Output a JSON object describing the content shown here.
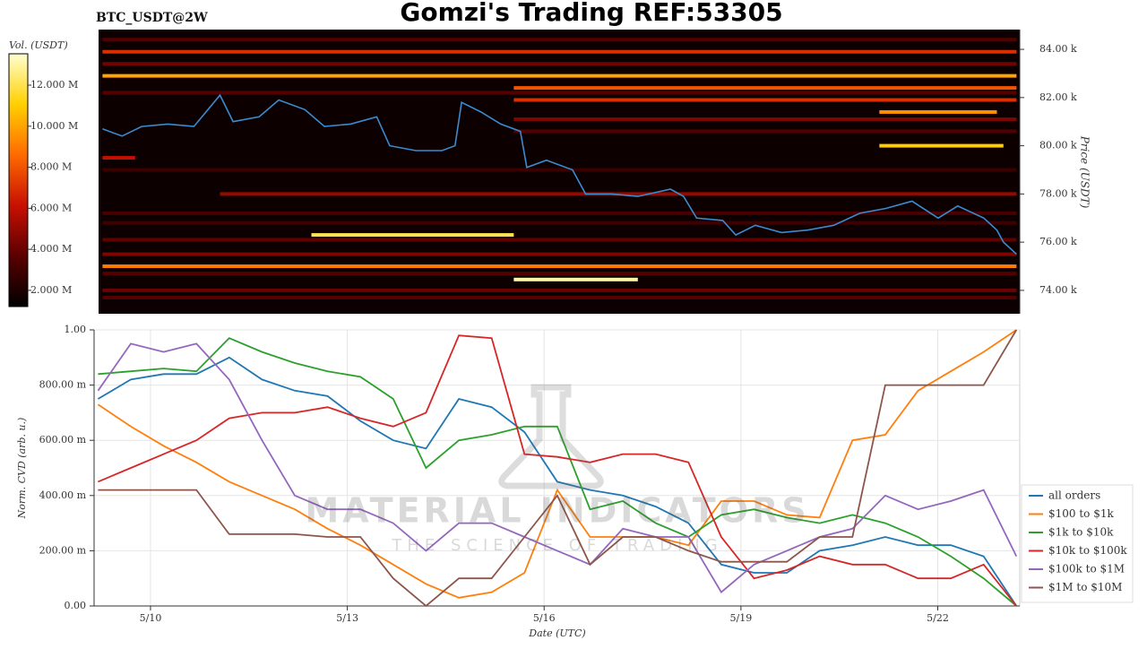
{
  "title": "Gomzi's Trading REF:53305",
  "watermark": {
    "title": "MATERIAL INDICATORS",
    "subtitle": "THE SCIENCE OF TRADING"
  },
  "chart_data": [
    {
      "type": "heatmap",
      "label": "BTC_USDT@2W",
      "y_label": "Price (USDT)",
      "colorbar_label": "Vol. (USDT)",
      "xlim": [
        9.14,
        23.25
      ],
      "ylim": [
        73030,
        84820
      ],
      "yticks": [
        {
          "value": 74000,
          "label": "74.00 k"
        },
        {
          "value": 76000,
          "label": "76.00 k"
        },
        {
          "value": 78000,
          "label": "78.00 k"
        },
        {
          "value": 80000,
          "label": "80.00 k"
        },
        {
          "value": 82000,
          "label": "82.00 k"
        },
        {
          "value": 84000,
          "label": "84.00 k"
        }
      ],
      "clim": [
        1210000,
        13530000
      ],
      "cticks": [
        {
          "value": 2000000,
          "label": "2.000 M"
        },
        {
          "value": 4000000,
          "label": "4.000 M"
        },
        {
          "value": 6000000,
          "label": "6.000 M"
        },
        {
          "value": 8000000,
          "label": "8.000 M"
        },
        {
          "value": 10000000,
          "label": "10.000 M"
        },
        {
          "value": 12000000,
          "label": "12.000 M"
        }
      ],
      "colormap": [
        "#000000",
        "#5a0000",
        "#c81000",
        "#ff6a00",
        "#ffd000",
        "#ffffd0"
      ],
      "levels": [
        {
          "price": 75000,
          "start": 9.2,
          "end": 23.2,
          "volume": 9000000
        },
        {
          "price": 76300,
          "start": 12.4,
          "end": 15.5,
          "volume": 12000000
        },
        {
          "price": 74450,
          "start": 15.5,
          "end": 17.4,
          "volume": 13000000
        },
        {
          "price": 82900,
          "start": 9.2,
          "end": 23.2,
          "volume": 10000000
        },
        {
          "price": 83900,
          "start": 9.2,
          "end": 23.2,
          "volume": 7000000
        },
        {
          "price": 80000,
          "start": 21.1,
          "end": 23.0,
          "volume": 11000000
        },
        {
          "price": 81400,
          "start": 21.1,
          "end": 22.9,
          "volume": 9500000
        },
        {
          "price": 82400,
          "start": 15.5,
          "end": 23.2,
          "volume": 8000000
        },
        {
          "price": 81900,
          "start": 15.5,
          "end": 23.2,
          "volume": 7000000
        },
        {
          "price": 79500,
          "start": 9.2,
          "end": 9.7,
          "volume": 6000000
        },
        {
          "price": 78000,
          "start": 11.0,
          "end": 23.2,
          "volume": 5000000
        },
        {
          "price": 74000,
          "start": 9.2,
          "end": 23.2,
          "volume": 4000000
        },
        {
          "price": 73700,
          "start": 9.2,
          "end": 23.2,
          "volume": 3500000
        },
        {
          "price": 75500,
          "start": 9.2,
          "end": 23.2,
          "volume": 4500000
        },
        {
          "price": 74700,
          "start": 9.2,
          "end": 23.2,
          "volume": 3500000
        },
        {
          "price": 76100,
          "start": 9.2,
          "end": 23.2,
          "volume": 3800000
        },
        {
          "price": 83400,
          "start": 9.2,
          "end": 23.2,
          "volume": 4200000
        },
        {
          "price": 82200,
          "start": 9.2,
          "end": 23.2,
          "volume": 3500000
        },
        {
          "price": 81100,
          "start": 15.5,
          "end": 23.2,
          "volume": 4500000
        },
        {
          "price": 80600,
          "start": 15.5,
          "end": 23.2,
          "volume": 3500000
        },
        {
          "price": 77200,
          "start": 9.2,
          "end": 23.2,
          "volume": 3200000
        },
        {
          "price": 76800,
          "start": 9.2,
          "end": 23.2,
          "volume": 3000000
        },
        {
          "price": 79000,
          "start": 9.2,
          "end": 23.2,
          "volume": 2800000
        },
        {
          "price": 84400,
          "start": 9.2,
          "end": 23.2,
          "volume": 3500000
        }
      ],
      "line_color": "#3b8bd0",
      "x": [
        9.2,
        9.5,
        9.8,
        10.2,
        10.6,
        11.0,
        11.2,
        11.6,
        11.9,
        12.3,
        12.6,
        13.0,
        13.4,
        13.6,
        14.0,
        14.4,
        14.6,
        14.7,
        15.0,
        15.3,
        15.6,
        15.7,
        16.0,
        16.4,
        16.6,
        17.0,
        17.4,
        17.9,
        18.1,
        18.3,
        18.7,
        18.9,
        19.2,
        19.6,
        20.0,
        20.4,
        20.8,
        21.2,
        21.6,
        22.0,
        22.3,
        22.7,
        22.9,
        23.0,
        23.2
      ],
      "values": [
        80700,
        80400,
        80800,
        80900,
        80800,
        82100,
        81000,
        81200,
        81900,
        81500,
        80800,
        80900,
        81200,
        80000,
        79800,
        79800,
        80000,
        81800,
        81400,
        80900,
        80600,
        79100,
        79400,
        79000,
        78000,
        78000,
        77900,
        78200,
        77900,
        77000,
        76900,
        76300,
        76700,
        76400,
        76500,
        76700,
        77200,
        77400,
        77700,
        77000,
        77500,
        77000,
        76500,
        76000,
        75500
      ]
    },
    {
      "type": "line",
      "y_label": "Norm. CVD (arb. u.)",
      "x_label": "Date (UTC)",
      "xlim": [
        9.14,
        23.25
      ],
      "ylim": [
        0,
        1
      ],
      "xticks": [
        {
          "value": 10,
          "label": "5/10"
        },
        {
          "value": 13,
          "label": "5/13"
        },
        {
          "value": 16,
          "label": "5/16"
        },
        {
          "value": 19,
          "label": "5/19"
        },
        {
          "value": 22,
          "label": "5/22"
        }
      ],
      "yticks": [
        {
          "value": 0,
          "label": "0.00"
        },
        {
          "value": 0.2,
          "label": "200.00 m"
        },
        {
          "value": 0.4,
          "label": "400.00 m"
        },
        {
          "value": 0.6,
          "label": "600.00 m"
        },
        {
          "value": 0.8,
          "label": "800.00 m"
        },
        {
          "value": 1,
          "label": "1.00"
        }
      ],
      "grid": true,
      "legend": "lower right",
      "x": [
        9.2,
        9.7,
        10.2,
        10.7,
        11.2,
        11.7,
        12.2,
        12.7,
        13.2,
        13.7,
        14.2,
        14.7,
        15.2,
        15.7,
        16.2,
        16.7,
        17.2,
        17.7,
        18.2,
        18.7,
        19.2,
        19.7,
        20.2,
        20.7,
        21.2,
        21.7,
        22.2,
        22.7,
        23.2
      ],
      "series": [
        {
          "name": "all orders",
          "color": "#1f77b4",
          "values": [
            0.75,
            0.82,
            0.84,
            0.84,
            0.9,
            0.82,
            0.78,
            0.76,
            0.67,
            0.6,
            0.57,
            0.75,
            0.72,
            0.63,
            0.45,
            0.42,
            0.4,
            0.36,
            0.3,
            0.15,
            0.12,
            0.12,
            0.2,
            0.22,
            0.25,
            0.22,
            0.22,
            0.18,
            0
          ]
        },
        {
          "name": "$100 to $1k",
          "color": "#ff7f0e",
          "values": [
            0.73,
            0.65,
            0.58,
            0.52,
            0.45,
            0.4,
            0.35,
            0.28,
            0.22,
            0.15,
            0.08,
            0.03,
            0.05,
            0.12,
            0.42,
            0.25,
            0.25,
            0.25,
            0.22,
            0.38,
            0.38,
            0.33,
            0.32,
            0.6,
            0.62,
            0.78,
            0.85,
            0.92,
            1
          ]
        },
        {
          "name": "$1k to $10k",
          "color": "#2ca02c",
          "values": [
            0.84,
            0.85,
            0.86,
            0.85,
            0.97,
            0.92,
            0.88,
            0.85,
            0.83,
            0.75,
            0.5,
            0.6,
            0.62,
            0.65,
            0.65,
            0.35,
            0.38,
            0.3,
            0.25,
            0.33,
            0.35,
            0.32,
            0.3,
            0.33,
            0.3,
            0.25,
            0.18,
            0.1,
            0
          ]
        },
        {
          "name": "$10k to $100k",
          "color": "#d62728",
          "values": [
            0.45,
            0.5,
            0.55,
            0.6,
            0.68,
            0.7,
            0.7,
            0.72,
            0.68,
            0.65,
            0.7,
            0.98,
            0.97,
            0.55,
            0.54,
            0.52,
            0.55,
            0.55,
            0.52,
            0.25,
            0.1,
            0.13,
            0.18,
            0.15,
            0.15,
            0.1,
            0.1,
            0.15,
            0
          ]
        },
        {
          "name": "$100k to $1M",
          "color": "#9467bd",
          "values": [
            0.78,
            0.95,
            0.92,
            0.95,
            0.82,
            0.6,
            0.4,
            0.35,
            0.35,
            0.3,
            0.2,
            0.3,
            0.3,
            0.25,
            0.2,
            0.15,
            0.28,
            0.25,
            0.25,
            0.05,
            0.15,
            0.2,
            0.25,
            0.28,
            0.4,
            0.35,
            0.38,
            0.42,
            0.18
          ]
        },
        {
          "name": "$1M to $10M",
          "color": "#8c564b",
          "values": [
            0.42,
            0.42,
            0.42,
            0.42,
            0.26,
            0.26,
            0.26,
            0.25,
            0.25,
            0.1,
            0,
            0.1,
            0.1,
            0.25,
            0.4,
            0.15,
            0.25,
            0.25,
            0.2,
            0.16,
            0.16,
            0.16,
            0.25,
            0.25,
            0.8,
            0.8,
            0.8,
            0.8,
            1
          ]
        }
      ]
    }
  ]
}
